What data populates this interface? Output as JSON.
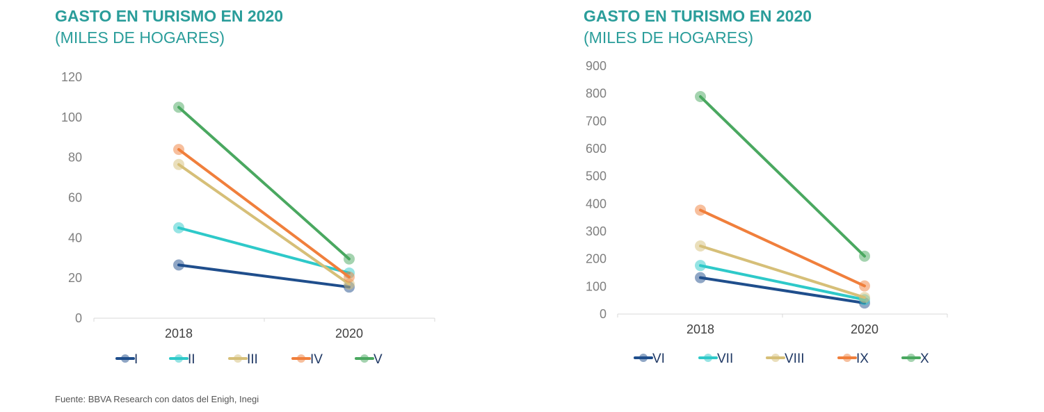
{
  "source": "Fuente: BBVA Research con datos del  Enigh, Inegi",
  "chart_data": [
    {
      "type": "line",
      "title": "GASTO EN TURISMO EN 2020",
      "subtitle": "(MILES DE HOGARES)",
      "x": [
        "2018",
        "2020"
      ],
      "ylim": [
        0,
        120
      ],
      "yticks": [
        0,
        20,
        40,
        60,
        80,
        100,
        120
      ],
      "grid": false,
      "legend": "bottom",
      "series": [
        {
          "name": "I",
          "color": "#1f4e8c",
          "values": [
            26.5,
            15.5
          ]
        },
        {
          "name": "II",
          "color": "#2ec9c9",
          "values": [
            45,
            22.5
          ]
        },
        {
          "name": "III",
          "color": "#d6bf78",
          "values": [
            76.5,
            17
          ]
        },
        {
          "name": "IV",
          "color": "#f07f3c",
          "values": [
            84,
            20.5
          ]
        },
        {
          "name": "V",
          "color": "#4aa860",
          "values": [
            105,
            29.5
          ]
        }
      ]
    },
    {
      "type": "line",
      "title": "GASTO EN TURISMO EN 2020",
      "subtitle": "(MILES DE HOGARES)",
      "x": [
        "2018",
        "2020"
      ],
      "ylim": [
        0,
        900
      ],
      "yticks": [
        0,
        100,
        200,
        300,
        400,
        500,
        600,
        700,
        800,
        900
      ],
      "grid": false,
      "legend": "bottom",
      "series": [
        {
          "name": "VI",
          "color": "#1f4e8c",
          "values": [
            132,
            40
          ]
        },
        {
          "name": "VII",
          "color": "#2ec9c9",
          "values": [
            176,
            52
          ]
        },
        {
          "name": "VIII",
          "color": "#d6bf78",
          "values": [
            247,
            60
          ]
        },
        {
          "name": "IX",
          "color": "#f07f3c",
          "values": [
            377,
            102
          ]
        },
        {
          "name": "X",
          "color": "#4aa860",
          "values": [
            789,
            210
          ]
        }
      ]
    }
  ]
}
